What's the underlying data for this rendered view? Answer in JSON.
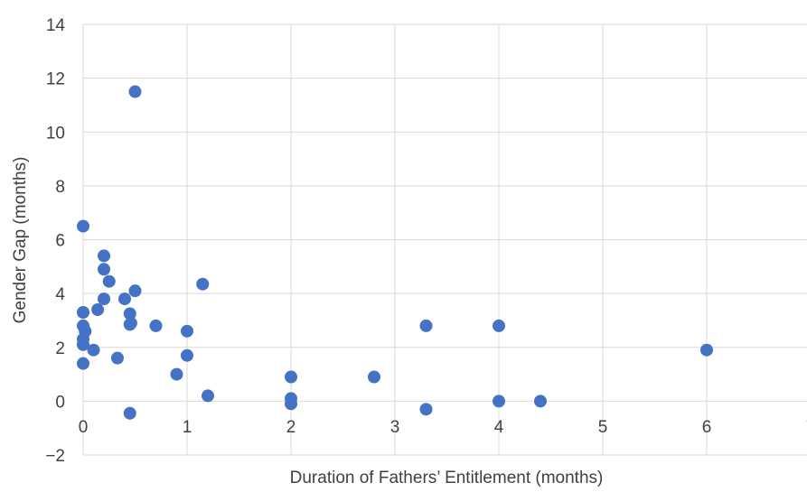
{
  "chart_data": {
    "type": "scatter",
    "xlabel": "Duration of Fathers’ Entitlement (months)",
    "ylabel": "Gender Gap (months)",
    "xlim": [
      0,
      7
    ],
    "ylim": [
      -2,
      14
    ],
    "xticks": [
      "0",
      "1",
      "2",
      "3",
      "4",
      "5",
      "6",
      "7"
    ],
    "yticks": [
      "−2",
      "0",
      "2",
      "4",
      "6",
      "8",
      "10",
      "12",
      "14"
    ],
    "grid": "vertical and horizontal",
    "legend": "none",
    "marker_color": "#4472c4",
    "series": [
      {
        "points": [
          [
            0,
            6.5
          ],
          [
            0,
            3.3
          ],
          [
            0,
            2.8
          ],
          [
            0,
            2.3
          ],
          [
            0,
            2.1
          ],
          [
            0,
            1.4
          ],
          [
            0.02,
            2.6
          ],
          [
            0.1,
            1.9
          ],
          [
            0.14,
            3.4
          ],
          [
            0.2,
            5.4
          ],
          [
            0.2,
            4.9
          ],
          [
            0.2,
            3.8
          ],
          [
            0.25,
            4.45
          ],
          [
            0.33,
            1.6
          ],
          [
            0.4,
            3.8
          ],
          [
            0.45,
            3.25
          ],
          [
            0.45,
            2.85
          ],
          [
            0.46,
            2.9
          ],
          [
            0.45,
            -0.45
          ],
          [
            0.5,
            11.5
          ],
          [
            0.5,
            4.1
          ],
          [
            0.7,
            2.8
          ],
          [
            0.9,
            1.0
          ],
          [
            1.0,
            2.6
          ],
          [
            1.0,
            1.7
          ],
          [
            1.15,
            4.35
          ],
          [
            1.2,
            0.2
          ],
          [
            2.0,
            0.9
          ],
          [
            2.0,
            0.1
          ],
          [
            2.0,
            -0.1
          ],
          [
            2.8,
            0.9
          ],
          [
            3.3,
            2.8
          ],
          [
            3.3,
            -0.3
          ],
          [
            4.0,
            2.8
          ],
          [
            4.0,
            0.0
          ],
          [
            4.4,
            0.0
          ],
          [
            6.0,
            1.9
          ]
        ]
      }
    ]
  }
}
